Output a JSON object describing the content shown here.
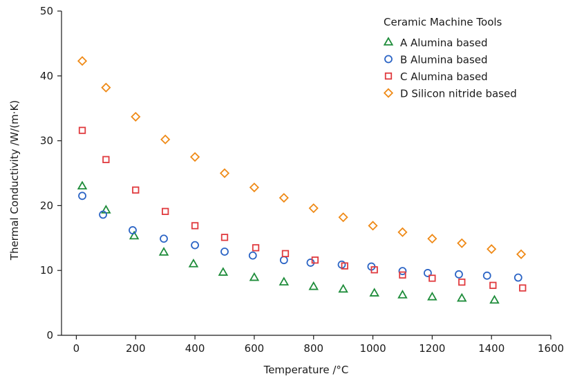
{
  "chart_data": {
    "type": "scatter",
    "title": "",
    "xlabel": "Temperature /°C",
    "ylabel": "Thermal Conductivity /W/(m·K)",
    "xlim": [
      -50,
      1600
    ],
    "ylim": [
      0,
      50
    ],
    "xticks": [
      "0",
      "200",
      "400",
      "600",
      "800",
      "1000",
      "1200",
      "1400",
      "1600"
    ],
    "yticks": [
      "0",
      "10",
      "20",
      "30",
      "40",
      "50"
    ],
    "grid": false,
    "legend": {
      "title": "Ceramic Machine Tools",
      "placement": "top-right"
    },
    "series": [
      {
        "name": "A Alumina based",
        "marker": "triangle",
        "color": "#1e8c3a",
        "points": [
          [
            20,
            23.0
          ],
          [
            100,
            19.3
          ],
          [
            195,
            15.3
          ],
          [
            295,
            12.8
          ],
          [
            395,
            11.0
          ],
          [
            495,
            9.7
          ],
          [
            600,
            8.9
          ],
          [
            700,
            8.2
          ],
          [
            800,
            7.5
          ],
          [
            900,
            7.1
          ],
          [
            1005,
            6.5
          ],
          [
            1100,
            6.2
          ],
          [
            1200,
            5.9
          ],
          [
            1300,
            5.7
          ],
          [
            1410,
            5.4
          ]
        ]
      },
      {
        "name": "B Alumina based",
        "marker": "circle",
        "color": "#2b64c5",
        "points": [
          [
            20,
            21.5
          ],
          [
            90,
            18.6
          ],
          [
            190,
            16.2
          ],
          [
            295,
            14.9
          ],
          [
            400,
            13.9
          ],
          [
            500,
            12.9
          ],
          [
            595,
            12.3
          ],
          [
            700,
            11.6
          ],
          [
            790,
            11.2
          ],
          [
            895,
            10.9
          ],
          [
            995,
            10.6
          ],
          [
            1100,
            9.9
          ],
          [
            1185,
            9.6
          ],
          [
            1290,
            9.4
          ],
          [
            1385,
            9.2
          ],
          [
            1490,
            8.9
          ]
        ]
      },
      {
        "name": "C Alumina based",
        "marker": "square",
        "color": "#e03a3e",
        "points": [
          [
            20,
            31.6
          ],
          [
            100,
            27.1
          ],
          [
            200,
            22.4
          ],
          [
            300,
            19.1
          ],
          [
            400,
            16.9
          ],
          [
            500,
            15.1
          ],
          [
            605,
            13.5
          ],
          [
            705,
            12.6
          ],
          [
            805,
            11.6
          ],
          [
            905,
            10.7
          ],
          [
            1005,
            10.1
          ],
          [
            1100,
            9.3
          ],
          [
            1200,
            8.8
          ],
          [
            1300,
            8.2
          ],
          [
            1405,
            7.7
          ],
          [
            1505,
            7.3
          ]
        ]
      },
      {
        "name": "D Silicon nitride based",
        "marker": "diamond",
        "color": "#ef8a17",
        "points": [
          [
            20,
            42.3
          ],
          [
            100,
            38.2
          ],
          [
            200,
            33.7
          ],
          [
            300,
            30.2
          ],
          [
            400,
            27.5
          ],
          [
            500,
            25.0
          ],
          [
            600,
            22.8
          ],
          [
            700,
            21.2
          ],
          [
            800,
            19.6
          ],
          [
            900,
            18.2
          ],
          [
            1000,
            16.9
          ],
          [
            1100,
            15.9
          ],
          [
            1200,
            14.9
          ],
          [
            1300,
            14.2
          ],
          [
            1400,
            13.3
          ],
          [
            1500,
            12.5
          ]
        ]
      }
    ]
  }
}
